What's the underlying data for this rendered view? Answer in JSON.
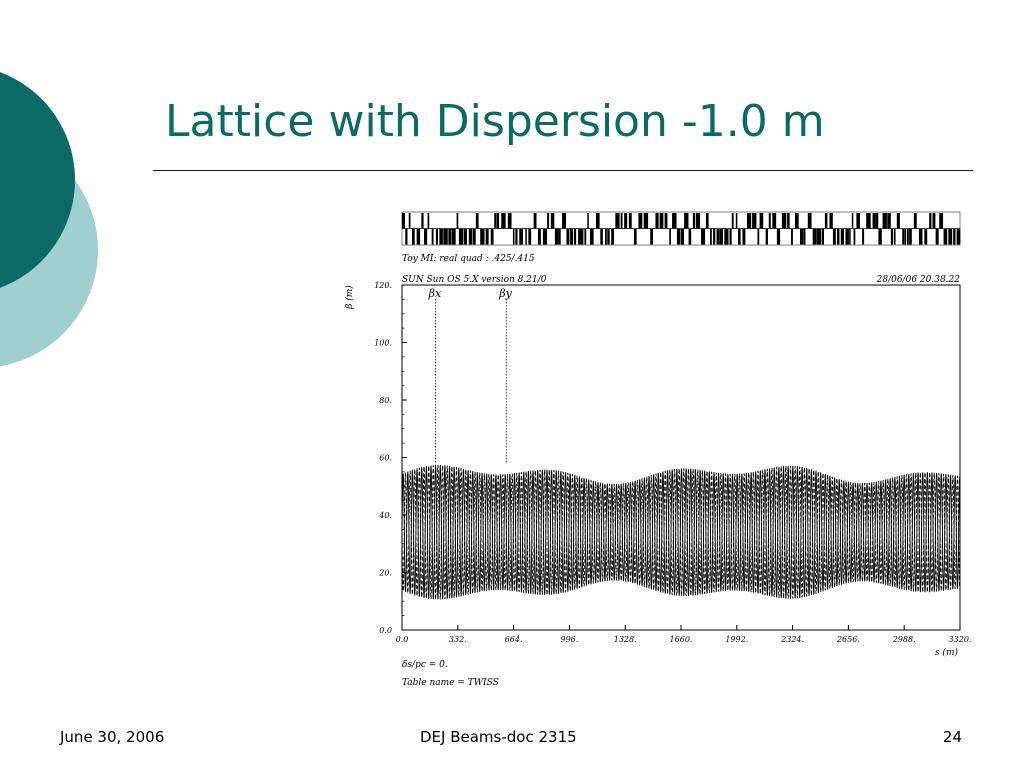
{
  "slide": {
    "title": "Lattice with Dispersion -1.0 m",
    "footer_date": "June 30, 2006",
    "footer_doc": "DEJ Beams-doc 2315",
    "page_number": "24"
  },
  "theme": {
    "primary": "#0b6a66",
    "secondary": "#9fcfcf"
  },
  "chart_data": {
    "type": "line",
    "header_left": "Toy MI: real quad : .425/.415",
    "subheader_left": "SUN Sun OS 5.X version 8.21/0",
    "subheader_right": "28/06/06 20.38.22",
    "ylabel": "β (m)",
    "xlabel": "s (m)",
    "xlim": [
      0,
      3320
    ],
    "ylim": [
      0,
      120
    ],
    "x_ticks": [
      "0.0",
      "332.",
      "664.",
      "996.",
      "1328.",
      "1660.",
      "1992.",
      "2324.",
      "2656.",
      "2988.",
      "3320."
    ],
    "y_ticks": [
      "0.0",
      "20.",
      "40.",
      "60.",
      "80.",
      "100.",
      "120."
    ],
    "legend": [
      {
        "label": "βx",
        "style": "solid",
        "x": 200
      },
      {
        "label": "βy",
        "style": "dashed",
        "x": 620
      }
    ],
    "series": [
      {
        "name": "βx",
        "style": "solid",
        "color": "#000000",
        "min": 10,
        "max": 58,
        "period": 27.6,
        "phase": 0
      },
      {
        "name": "βy",
        "style": "dashed",
        "color": "#000000",
        "min": 10,
        "max": 58,
        "period": 27.6,
        "phase": 13.8
      }
    ],
    "footnote_1": "δs/pc = 0.",
    "footnote_2": "Table name = TWISS"
  }
}
